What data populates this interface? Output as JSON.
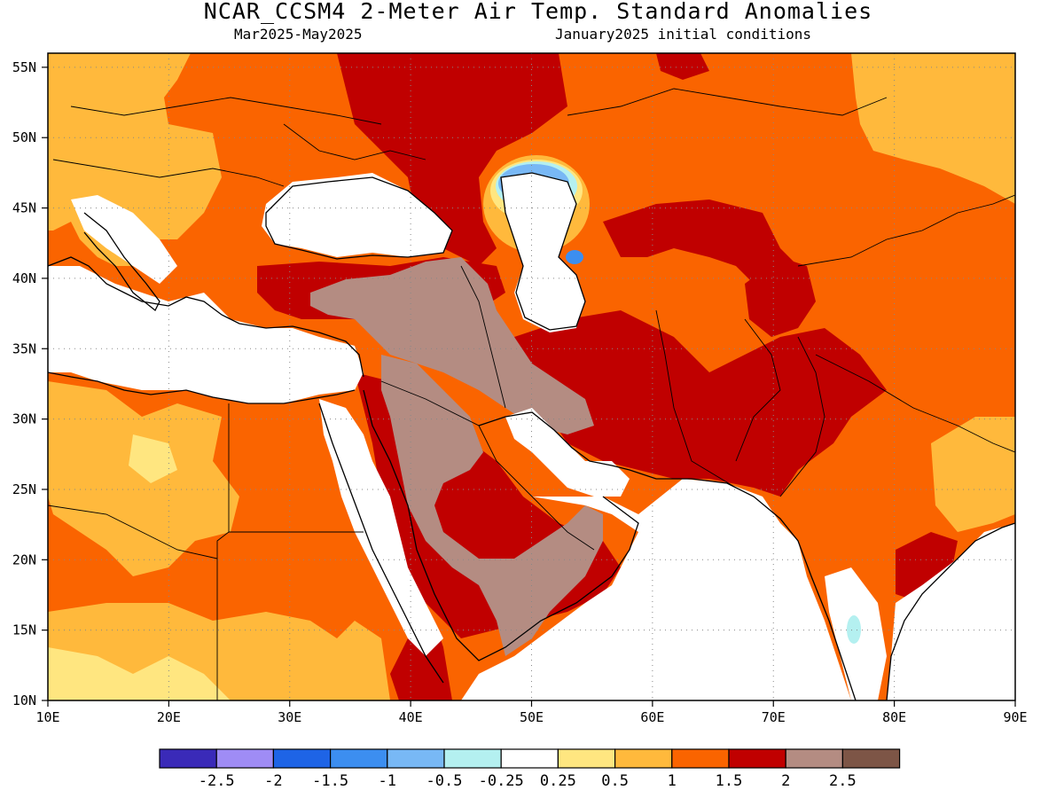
{
  "header": {
    "title": "NCAR_CCSM4 2-Meter Air Temp. Standard Anomalies",
    "subtitle_left": "Mar2025-May2025",
    "subtitle_right": "January2025 initial conditions"
  },
  "map": {
    "lon_range": [
      10,
      90
    ],
    "lat_range": [
      10,
      56
    ],
    "lon_ticks": [
      {
        "value": 10,
        "label": "10E"
      },
      {
        "value": 20,
        "label": "20E"
      },
      {
        "value": 30,
        "label": "30E"
      },
      {
        "value": 40,
        "label": "40E"
      },
      {
        "value": 50,
        "label": "50E"
      },
      {
        "value": 60,
        "label": "60E"
      },
      {
        "value": 70,
        "label": "70E"
      },
      {
        "value": 80,
        "label": "80E"
      },
      {
        "value": 90,
        "label": "90E"
      }
    ],
    "lat_ticks": [
      {
        "value": 10,
        "label": "10N"
      },
      {
        "value": 15,
        "label": "15N"
      },
      {
        "value": 20,
        "label": "20N"
      },
      {
        "value": 25,
        "label": "25N"
      },
      {
        "value": 30,
        "label": "30N"
      },
      {
        "value": 35,
        "label": "35N"
      },
      {
        "value": 40,
        "label": "40N"
      },
      {
        "value": 45,
        "label": "45N"
      },
      {
        "value": 50,
        "label": "50N"
      },
      {
        "value": 55,
        "label": "55N"
      }
    ],
    "gridlines": true
  },
  "colorbar": {
    "colors": [
      "#3a2ab8",
      "#9f8cf5",
      "#1e64e6",
      "#3c8ef0",
      "#78b8f5",
      "#b4f0f0",
      "#ffffff",
      "#ffe680",
      "#ffb93c",
      "#fa6400",
      "#c00000",
      "#b48c82",
      "#7d5546"
    ],
    "labels": [
      "-2.5",
      "-2",
      "-1.5",
      "-1",
      "-0.5",
      "-0.25",
      "0.25",
      "0.5",
      "1",
      "1.5",
      "2",
      "2.5"
    ]
  }
}
